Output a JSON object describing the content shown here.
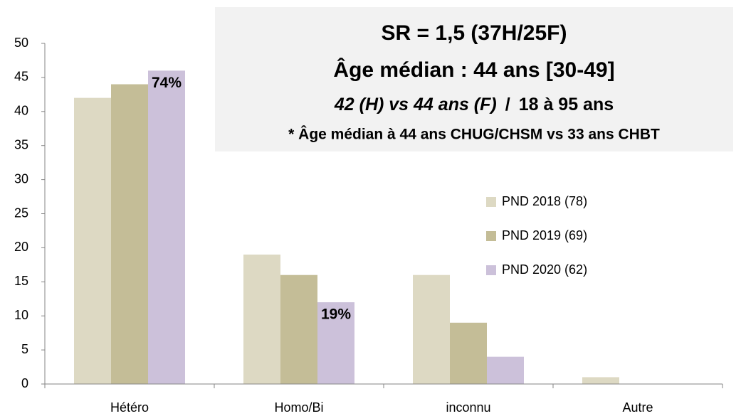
{
  "chart_data": {
    "type": "bar",
    "categories": [
      "Hétéro",
      "Homo/Bi",
      "inconnu",
      "Autre"
    ],
    "series": [
      {
        "name": "PND 2018 (78)",
        "color": "#ddd9c3",
        "values": [
          42,
          19,
          16,
          1
        ]
      },
      {
        "name": "PND 2019 (69)",
        "color": "#c4bd97",
        "values": [
          44,
          16,
          9,
          0
        ]
      },
      {
        "name": "PND 2020 (62)",
        "color": "#ccc1da",
        "values": [
          46,
          12,
          4,
          0
        ]
      }
    ],
    "annotations": [
      "74%",
      "19%"
    ],
    "note_lines": [
      "SR = 1,5 (37H/25F)",
      "Âge médian :  44 ans [30-49]",
      [
        "42 (H) vs 44 ans (F)",
        "/",
        "18 à 95 ans"
      ],
      "* Âge médian à 44 ans CHUG/CHSM vs 33 ans CHBT"
    ],
    "ylim": [
      0,
      50
    ],
    "yticks": [
      0,
      5,
      10,
      15,
      20,
      25,
      30,
      35,
      40,
      45,
      50
    ],
    "grid": false,
    "legend": "right"
  }
}
